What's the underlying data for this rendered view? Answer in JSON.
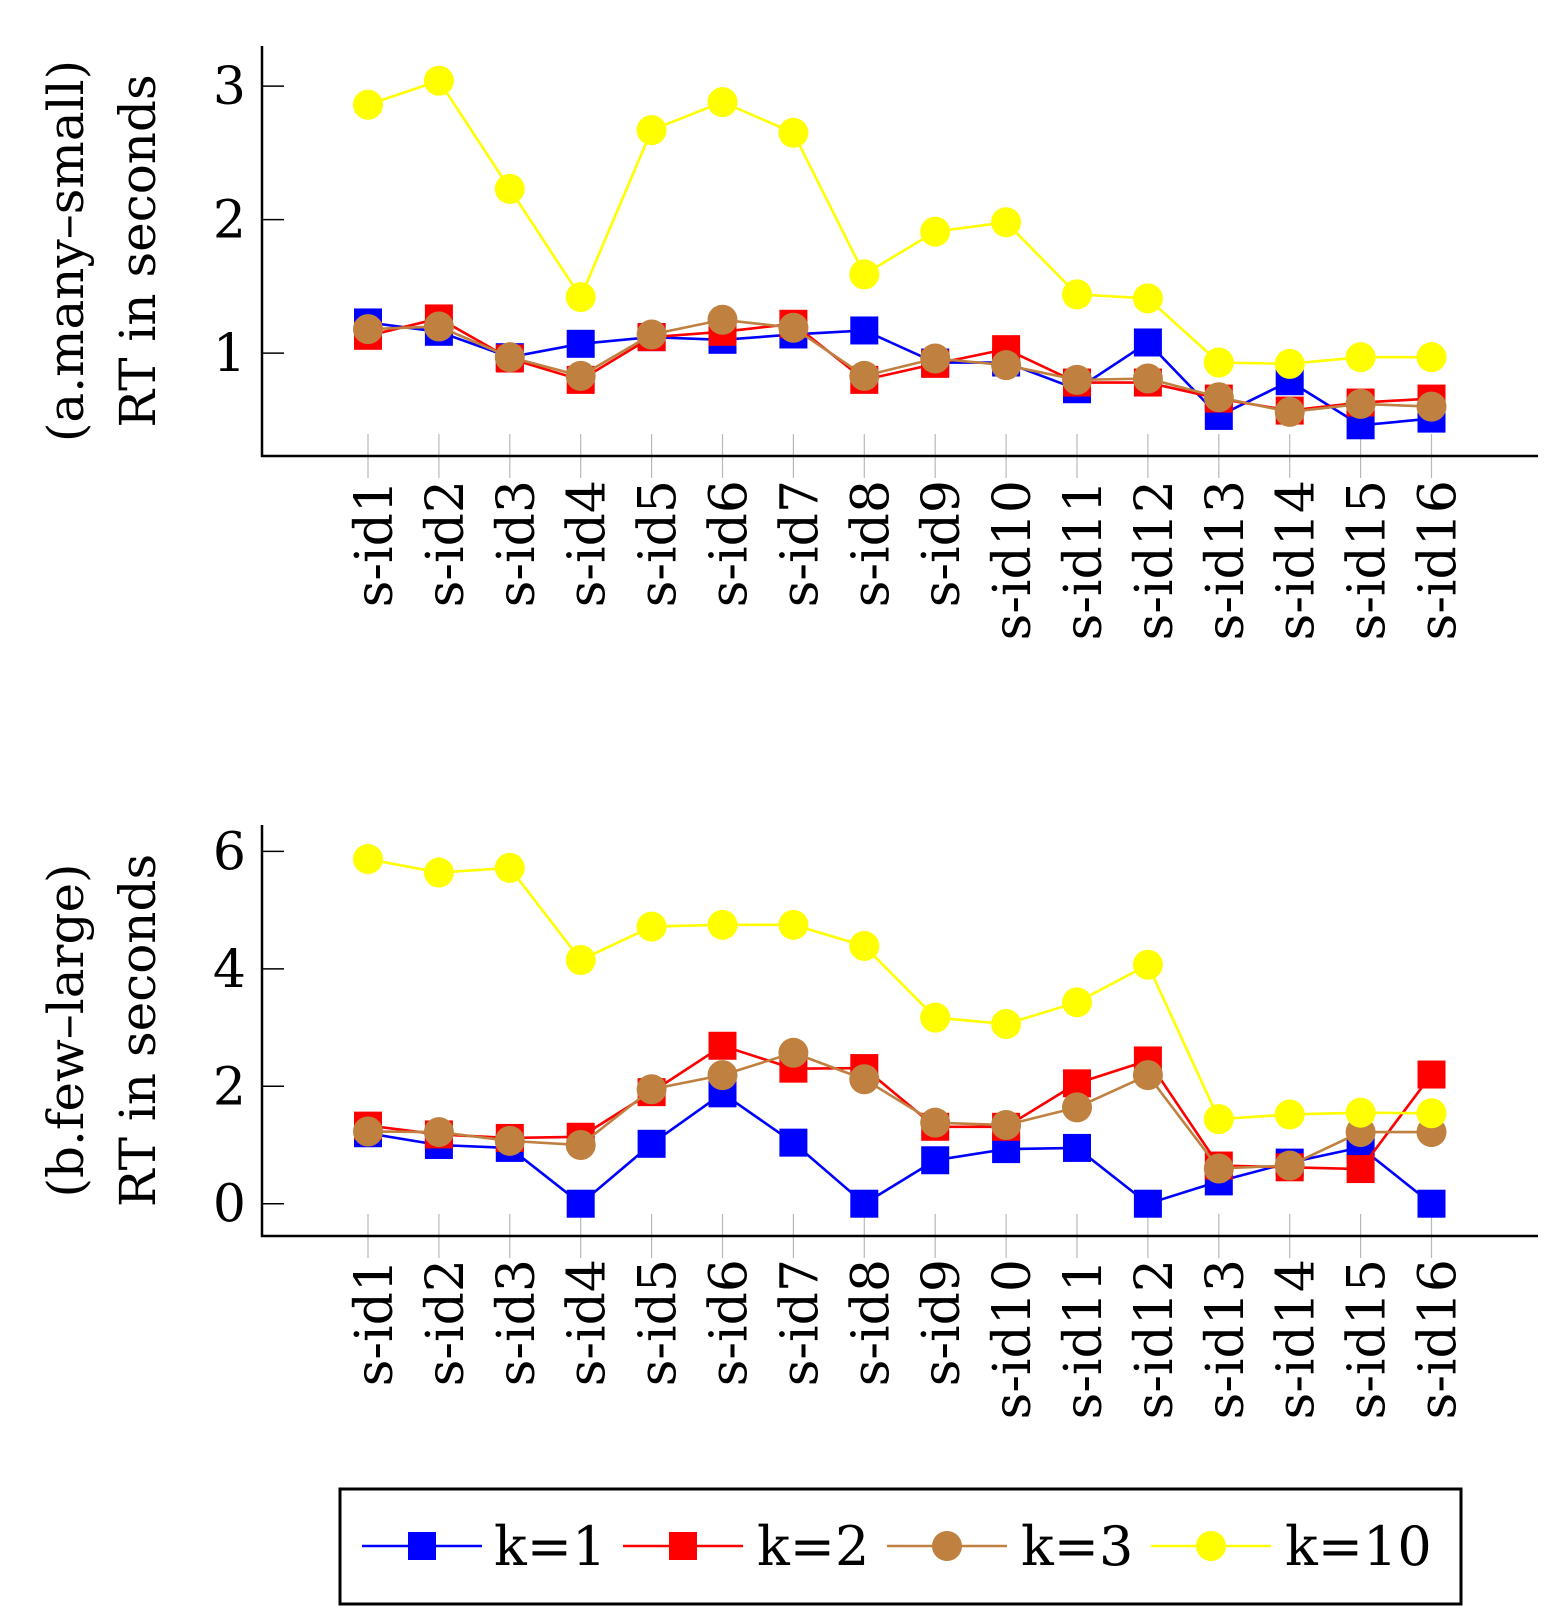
{
  "legend": [
    {
      "key": "k1",
      "label": "k=1",
      "color": "#0000ff",
      "marker": "square"
    },
    {
      "key": "k2",
      "label": "k=2",
      "color": "#ff0000",
      "marker": "square"
    },
    {
      "key": "k3",
      "label": "k=3",
      "color": "#bf8040",
      "marker": "circle"
    },
    {
      "key": "k10",
      "label": "k=10",
      "color": "#ffff00",
      "marker": "circle"
    }
  ],
  "chart_data": [
    {
      "type": "line",
      "ylabel_line1": "(a.many–small)",
      "ylabel_line2": "RT in seconds",
      "categories": [
        "s-id1",
        "s-id2",
        "s-id3",
        "s-id4",
        "s-id5",
        "s-id6",
        "s-id7",
        "s-id8",
        "s-id9",
        "s-id10",
        "s-id11",
        "s-id12",
        "s-id13",
        "s-id14",
        "s-id15",
        "s-id16"
      ],
      "yticks": [
        1,
        2,
        3
      ],
      "ylim": [
        0.23,
        3.3
      ],
      "series": [
        {
          "name": "k=1",
          "values": [
            1.23,
            1.16,
            0.97,
            1.07,
            1.12,
            1.1,
            1.14,
            1.17,
            0.93,
            0.93,
            0.73,
            1.08,
            0.53,
            0.79,
            0.46,
            0.51
          ]
        },
        {
          "name": "k=2",
          "values": [
            1.13,
            1.26,
            0.96,
            0.8,
            1.12,
            1.16,
            1.22,
            0.8,
            0.92,
            1.03,
            0.78,
            0.78,
            0.66,
            0.57,
            0.63,
            0.66
          ]
        },
        {
          "name": "k=3",
          "values": [
            1.18,
            1.2,
            0.97,
            0.83,
            1.14,
            1.25,
            1.19,
            0.83,
            0.96,
            0.91,
            0.8,
            0.81,
            0.67,
            0.56,
            0.62,
            0.6
          ]
        },
        {
          "name": "k=10",
          "values": [
            2.86,
            3.04,
            2.23,
            1.42,
            2.67,
            2.88,
            2.65,
            1.59,
            1.91,
            1.98,
            1.44,
            1.41,
            0.93,
            0.92,
            0.97,
            0.97
          ]
        }
      ]
    },
    {
      "type": "line",
      "ylabel_line1": "(b.few–large)",
      "ylabel_line2": "RT in seconds",
      "categories": [
        "s-id1",
        "s-id2",
        "s-id3",
        "s-id4",
        "s-id5",
        "s-id6",
        "s-id7",
        "s-id8",
        "s-id9",
        "s-id10",
        "s-id11",
        "s-id12",
        "s-id13",
        "s-id14",
        "s-id15",
        "s-id16"
      ],
      "yticks": [
        0,
        2,
        4,
        6
      ],
      "ylim": [
        -0.55,
        6.45
      ],
      "series": [
        {
          "name": "k=1",
          "values": [
            1.2,
            1.0,
            0.95,
            0.0,
            1.02,
            1.88,
            1.04,
            0.0,
            0.74,
            0.93,
            0.95,
            0.0,
            0.38,
            0.7,
            0.96,
            0.0
          ]
        },
        {
          "name": "k=2",
          "values": [
            1.33,
            1.18,
            1.12,
            1.14,
            1.9,
            2.69,
            2.3,
            2.31,
            1.31,
            1.31,
            2.05,
            2.44,
            0.65,
            0.62,
            0.59,
            2.2
          ]
        },
        {
          "name": "k=3",
          "values": [
            1.23,
            1.22,
            1.07,
            1.0,
            1.95,
            2.19,
            2.57,
            2.12,
            1.38,
            1.34,
            1.64,
            2.19,
            0.6,
            0.65,
            1.22,
            1.22
          ]
        },
        {
          "name": "k=10",
          "values": [
            5.87,
            5.64,
            5.72,
            4.15,
            4.72,
            4.75,
            4.75,
            4.39,
            3.17,
            3.06,
            3.43,
            4.07,
            1.44,
            1.52,
            1.55,
            1.54
          ]
        }
      ]
    }
  ]
}
